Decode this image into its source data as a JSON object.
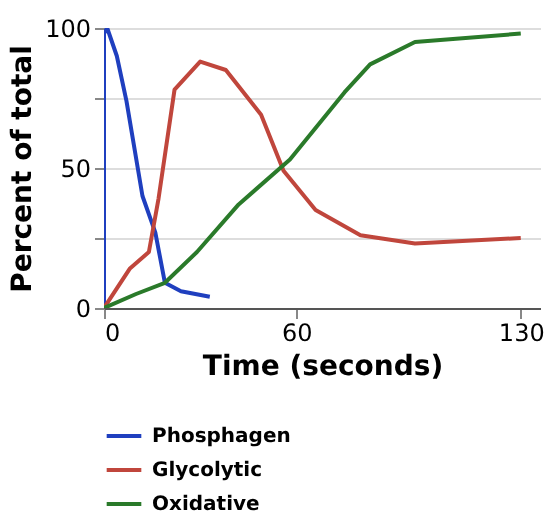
{
  "chart_data": {
    "type": "line",
    "xlabel": "Time (seconds)",
    "ylabel": "Percent of total",
    "xlim": [
      0,
      136
    ],
    "ylim": [
      0,
      100
    ],
    "xticks": [
      0,
      60,
      130
    ],
    "yticks": [
      0,
      {
        "value": 25,
        "label": null
      },
      50,
      {
        "value": 75,
        "label": null
      },
      100
    ],
    "grid": "y",
    "legend": "bottom",
    "marker": "none",
    "series": [
      {
        "name": "Phosphagen",
        "color": "#1f3fbf",
        "x": [
          0,
          0,
          1,
          4,
          7,
          12,
          16,
          19,
          24,
          33
        ],
        "values": [
          0,
          98,
          100,
          90,
          74,
          40,
          27,
          9,
          6,
          4
        ]
      },
      {
        "name": "Glycolytic",
        "color": "#c0463c",
        "x": [
          0,
          8,
          14,
          17,
          22,
          30,
          38,
          49,
          56,
          66,
          80,
          97,
          130
        ],
        "values": [
          0,
          14,
          20,
          39,
          78,
          88,
          85,
          69,
          49,
          35,
          26,
          23,
          25
        ]
      },
      {
        "name": "Oxidative",
        "color": "#2a7a2a",
        "x": [
          0,
          10,
          19,
          29,
          42,
          58,
          75,
          83,
          97,
          130
        ],
        "values": [
          0,
          5,
          9,
          20,
          37,
          53,
          77,
          87,
          95,
          98
        ]
      }
    ]
  }
}
